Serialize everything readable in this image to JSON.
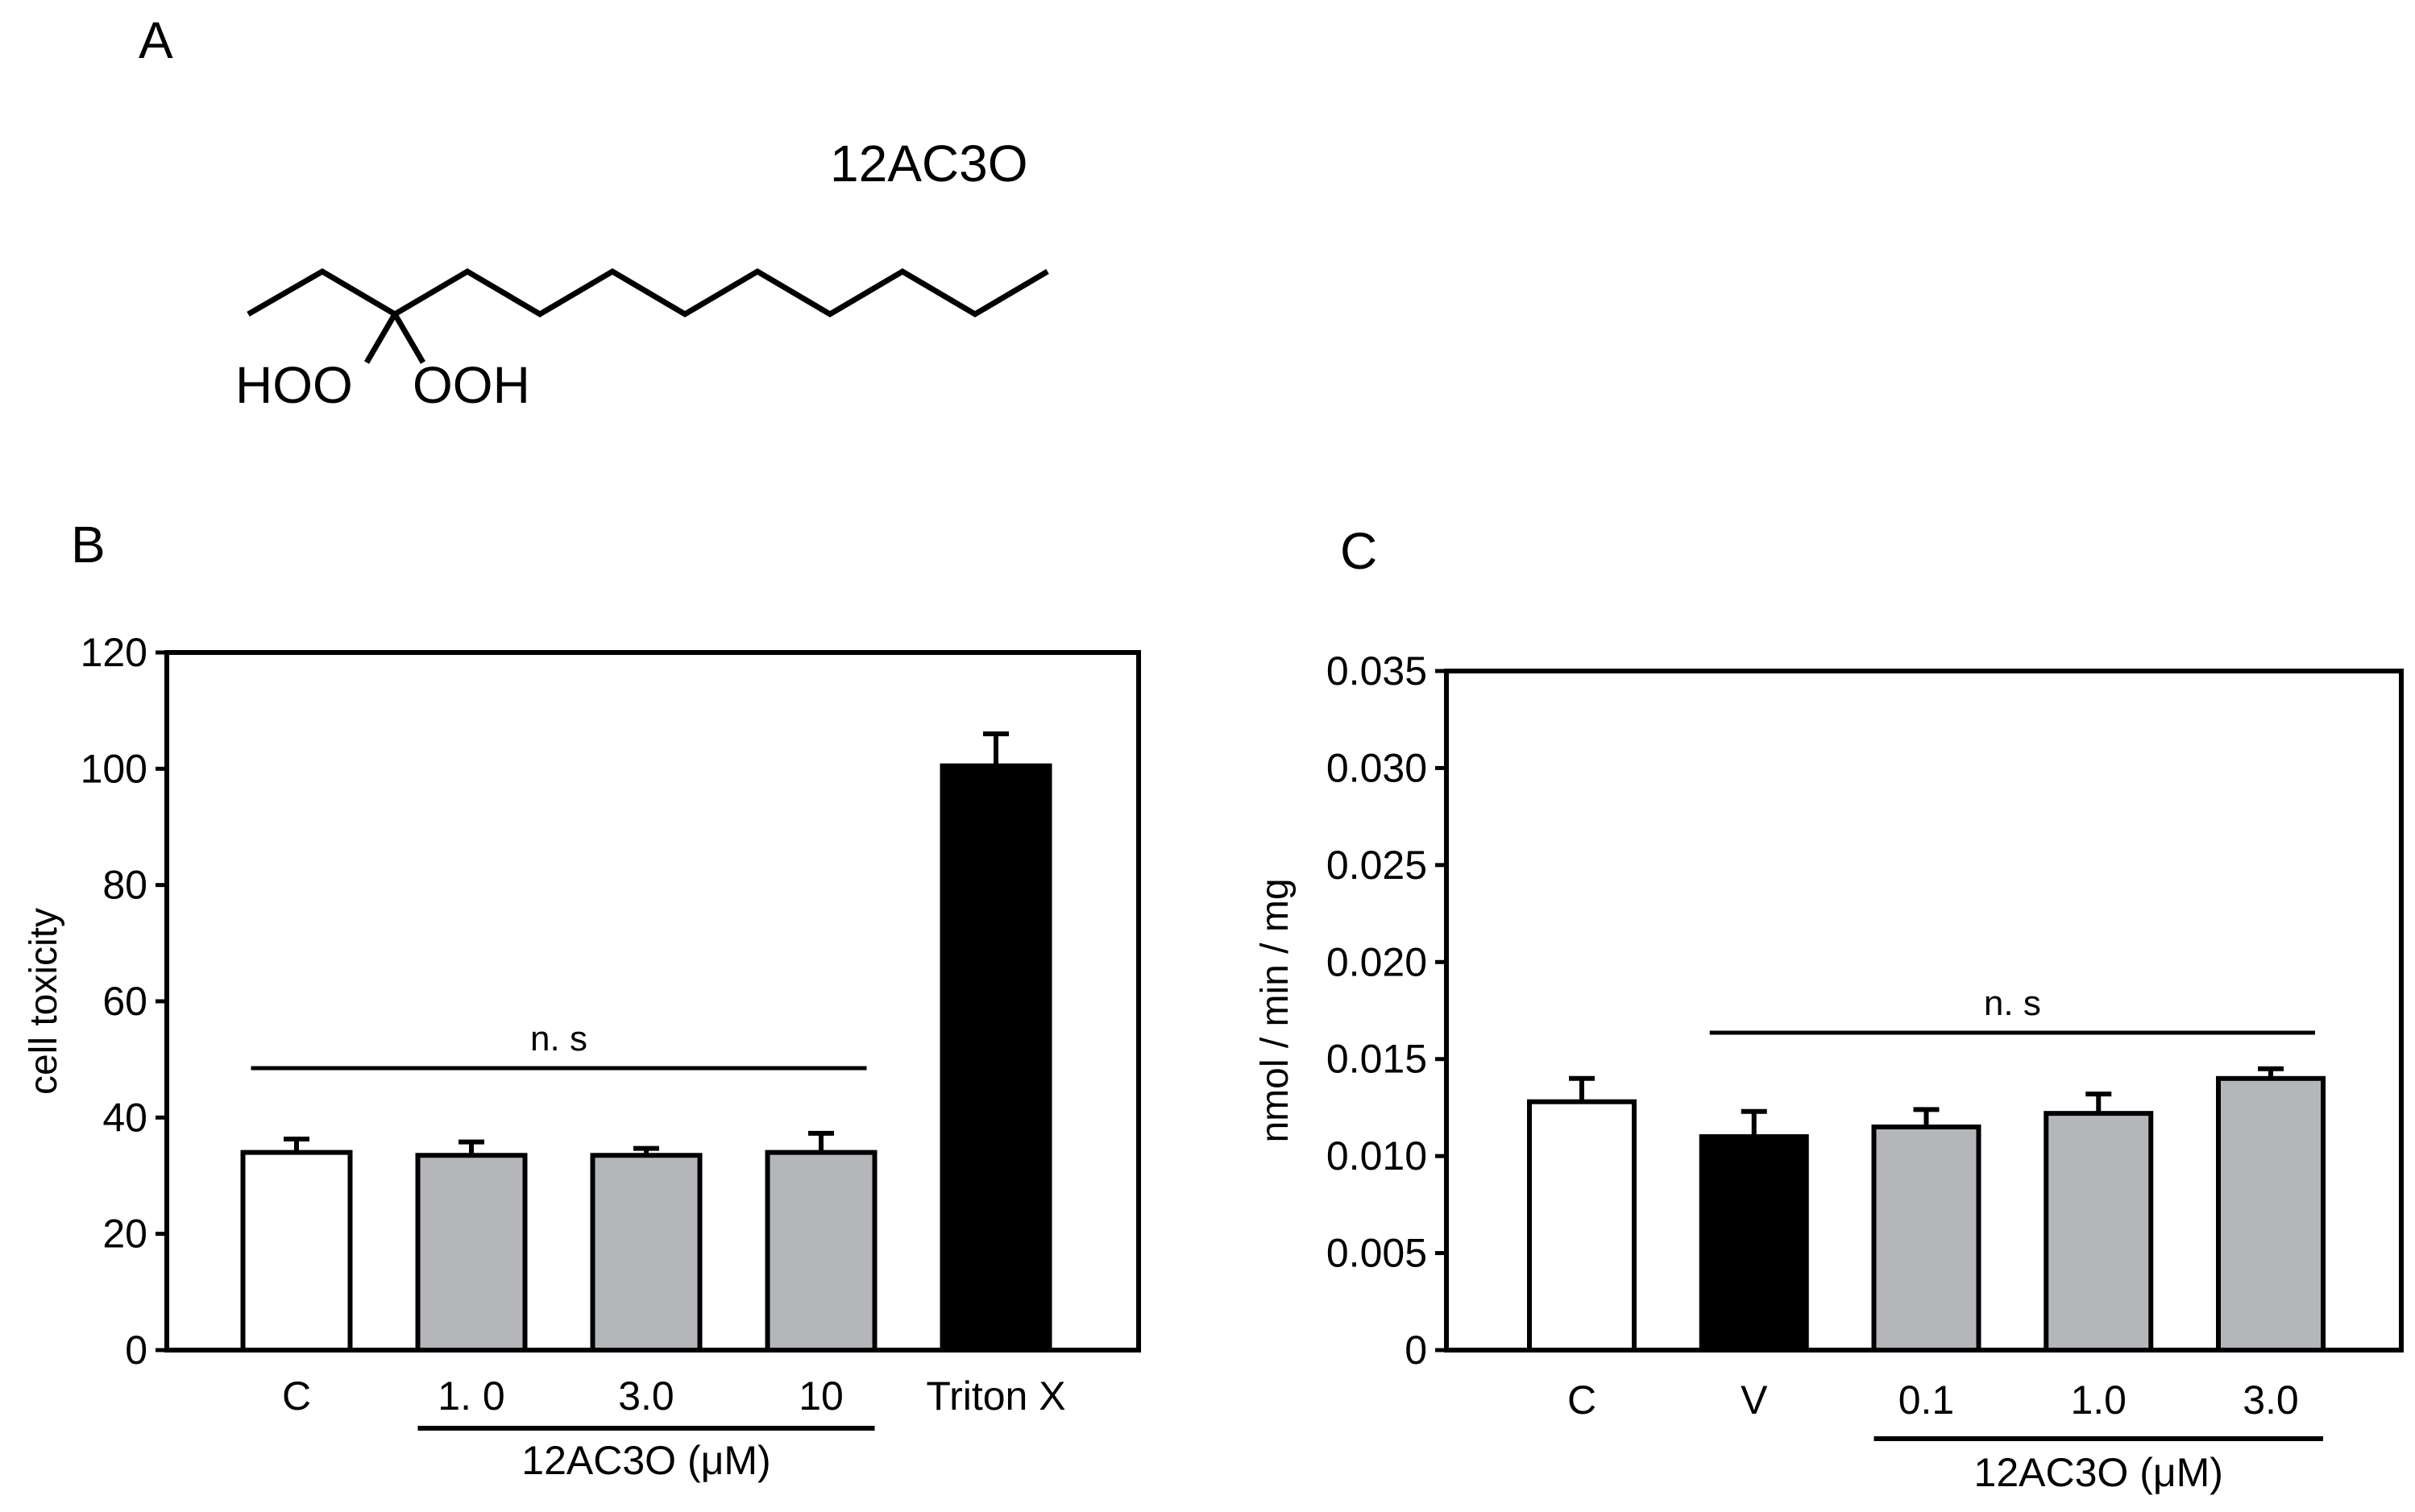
{
  "panels": {
    "a": {
      "letter": "A",
      "compound": "12AC3O",
      "left_group": "HOO",
      "right_group": "OOH"
    },
    "b": {
      "letter": "B"
    },
    "c": {
      "letter": "C"
    }
  },
  "chart_data": [
    {
      "type": "bar",
      "panel": "B",
      "ylabel": "cell toxicity",
      "ylim": [
        0,
        120
      ],
      "yticks": [
        "0",
        "20",
        "40",
        "60",
        "80",
        "100",
        "120"
      ],
      "categories": [
        "C",
        "1. 0",
        "3.0",
        "10",
        "Triton X"
      ],
      "values": [
        34,
        33.5,
        33.5,
        34,
        100.5
      ],
      "errors": [
        2.3,
        2.3,
        1.2,
        3.3,
        5.5
      ],
      "bar_colors": [
        "#ffffff",
        "#b5b6ba",
        "#b5b6ba",
        "#b5b6ba",
        "#000000"
      ],
      "group_label": "12AC3O (μM)",
      "group_range": [
        1,
        3
      ],
      "significance": {
        "label": "n. s",
        "from": 0,
        "to": 3
      }
    },
    {
      "type": "bar",
      "panel": "C",
      "ylabel": "nmol / min / mg",
      "ylim": [
        0,
        0.035
      ],
      "yticks": [
        "0",
        "0.005",
        "0.010",
        "0.015",
        "0.020",
        "0.025",
        "0.030",
        "0.035"
      ],
      "categories": [
        "C",
        "V",
        "0.1",
        "1.0",
        "3.0"
      ],
      "values": [
        0.0128,
        0.011,
        0.0115,
        0.0122,
        0.014
      ],
      "errors": [
        0.0012,
        0.0013,
        0.0009,
        0.001,
        0.0005
      ],
      "bar_colors": [
        "#ffffff",
        "#000000",
        "#b5b6ba",
        "#b5b6ba",
        "#b5b6ba"
      ],
      "group_label": "12AC3O (μM)",
      "group_range": [
        2,
        4
      ],
      "significance": {
        "label": "n. s",
        "from": 1,
        "to": 4
      }
    }
  ]
}
